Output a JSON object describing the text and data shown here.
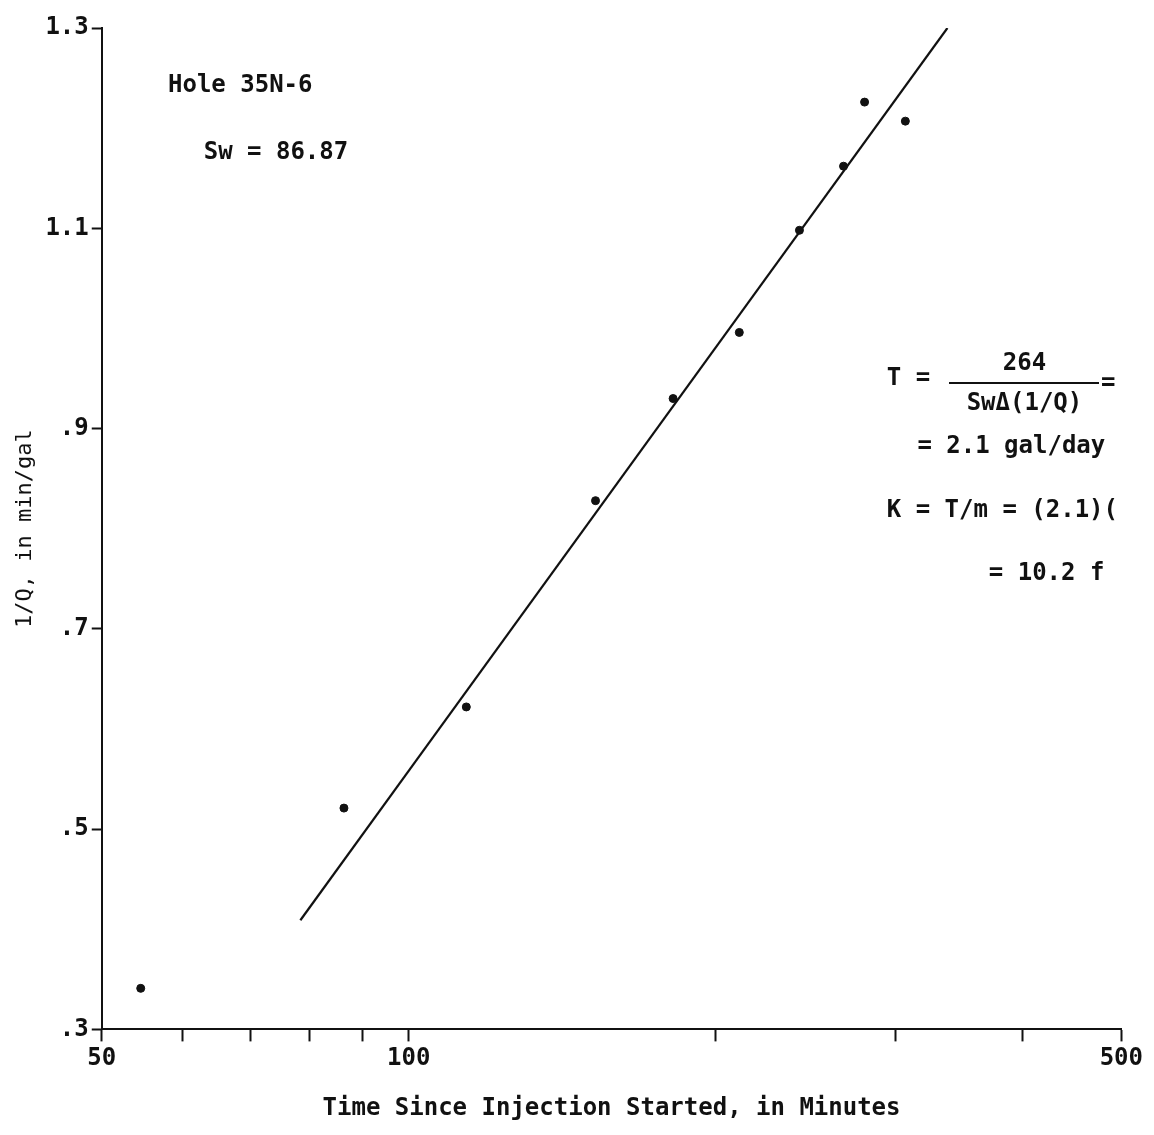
{
  "chart_data": {
    "type": "scatter",
    "xlabel": "Time Since Injection Started, in Minutes",
    "ylabel": "1/Q, in min/gal",
    "log": "x",
    "grid": false,
    "legend": false,
    "xlim": [
      50,
      500
    ],
    "xticks": [
      50,
      {
        "value": 60,
        "label": null
      },
      {
        "value": 70,
        "label": null
      },
      {
        "value": 80,
        "label": null
      },
      {
        "value": 90,
        "label": null
      },
      100,
      {
        "value": 200,
        "label": null
      },
      {
        "value": 300,
        "label": null
      },
      {
        "value": 400,
        "label": null
      },
      500
    ],
    "ylim": [
      0.3,
      1.3
    ],
    "yticks": [
      {
        "value": 0.3,
        "label": ".3"
      },
      {
        "value": 0.5,
        "label": ".5"
      },
      {
        "value": 0.7,
        "label": ".7"
      },
      {
        "value": 0.9,
        "label": ".9"
      },
      {
        "value": 1.1,
        "label": "1.1"
      },
      {
        "value": 1.3,
        "label": "1.3"
      }
    ],
    "series": [
      {
        "marker": "circle",
        "color": "#111111",
        "x": [
          54.6,
          86.4,
          113.9,
          152.5,
          181.7,
          211,
          241.7,
          267,
          280,
          307
        ],
        "values": [
          0.341,
          0.521,
          0.622,
          0.828,
          0.93,
          0.996,
          1.098,
          1.162,
          1.226,
          1.207
        ]
      },
      {
        "type": "line",
        "marker": "none",
        "color": "#111111",
        "x": [
          78.3,
          337.6
        ],
        "values": [
          0.409,
          1.3
        ]
      }
    ],
    "annotations": [
      "Hole 35N-6",
      "Sw = 86.87",
      "T =",
      "264",
      "SwΔ(1/Q)",
      "=",
      "= 2.1 gal/day",
      "K = T/m = (2.1)(",
      "= 10.2 f"
    ]
  }
}
